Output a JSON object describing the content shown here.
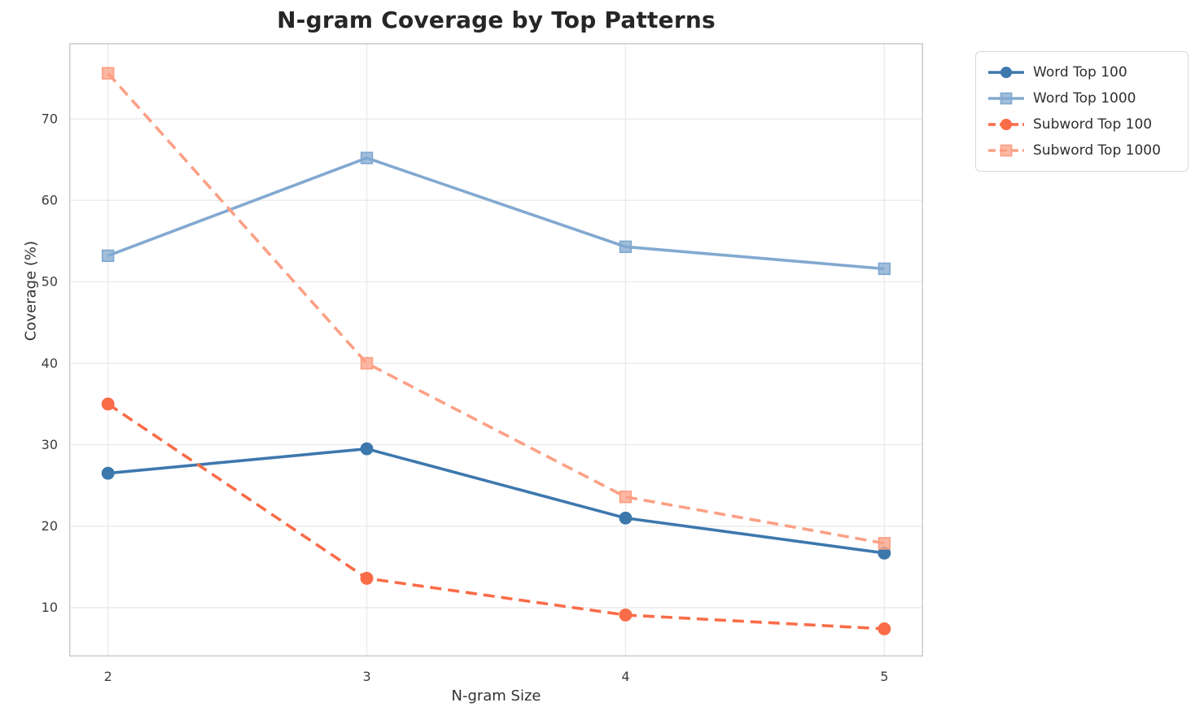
{
  "title": "N-gram Coverage by Top Patterns",
  "chart_data": {
    "type": "line",
    "title": "N-gram Coverage by Top Patterns",
    "xlabel": "N-gram Size",
    "ylabel": "Coverage (%)",
    "x": [
      2,
      3,
      4,
      5
    ],
    "xticks": [
      "2",
      "3",
      "4",
      "5"
    ],
    "yticks": [
      "10",
      "20",
      "30",
      "40",
      "50",
      "60",
      "70"
    ],
    "xlim": [
      1.85,
      5.15
    ],
    "ylim": [
      4.0,
      79.3
    ],
    "grid": true,
    "legend_position": "outside-upper-right",
    "series": [
      {
        "name": "Word Top 100",
        "values": [
          26.5,
          29.5,
          21.0,
          16.7
        ],
        "color": "#3d78ad",
        "marker": "circle",
        "line_style": "solid"
      },
      {
        "name": "Word Top 1000",
        "values": [
          53.2,
          65.2,
          54.3,
          51.6
        ],
        "color": "#82a9d0",
        "marker": "square",
        "line_style": "solid"
      },
      {
        "name": "Subword Top 100",
        "values": [
          35.0,
          13.6,
          9.1,
          7.4
        ],
        "color": "#f96c48",
        "marker": "circle",
        "line_style": "dashed"
      },
      {
        "name": "Subword Top 1000",
        "values": [
          75.6,
          40.0,
          23.6,
          17.9
        ],
        "color": "#fca085",
        "marker": "square",
        "line_style": "dashed"
      }
    ]
  },
  "style": {
    "grid_color": "#e9e9e9",
    "spine_color": "#cccccc",
    "tick_color": "#3d3d3d",
    "title_color": "#262626",
    "legend_border": "#d9d9d9"
  }
}
